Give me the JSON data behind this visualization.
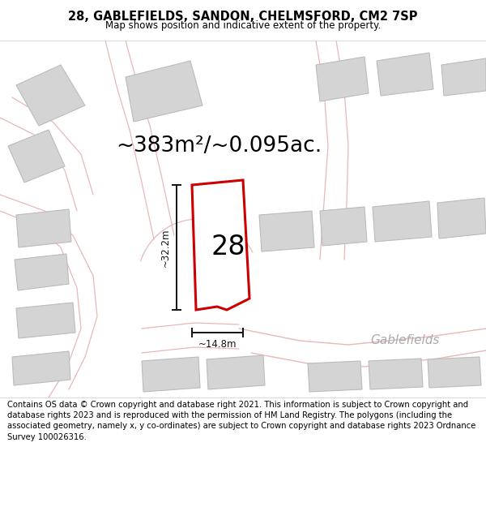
{
  "title": "28, GABLEFIELDS, SANDON, CHELMSFORD, CM2 7SP",
  "subtitle": "Map shows position and indicative extent of the property.",
  "footer": "Contains OS data © Crown copyright and database right 2021. This information is subject to Crown copyright and database rights 2023 and is reproduced with the permission of HM Land Registry. The polygons (including the associated geometry, namely x, y co-ordinates) are subject to Crown copyright and database rights 2023 Ordnance Survey 100026316.",
  "area_label": "~383m²/~0.095ac.",
  "width_label": "~14.8m",
  "height_label": "~32.2m",
  "number_label": "28",
  "road_label": "Gablefields",
  "map_bg": "#ffffff",
  "building_fill": "#d4d4d4",
  "building_stroke": "#bbbbbb",
  "highlight_stroke": "#cc0000",
  "highlight_fill": "#ffffff",
  "road_line_color": "#e8b8b8",
  "dim_line_color": "#111111",
  "title_fontsize": 10.5,
  "subtitle_fontsize": 8.5,
  "footer_fontsize": 7.2,
  "area_fontsize": 19,
  "number_fontsize": 24,
  "road_fontsize": 11,
  "dim_fontsize": 8.5
}
